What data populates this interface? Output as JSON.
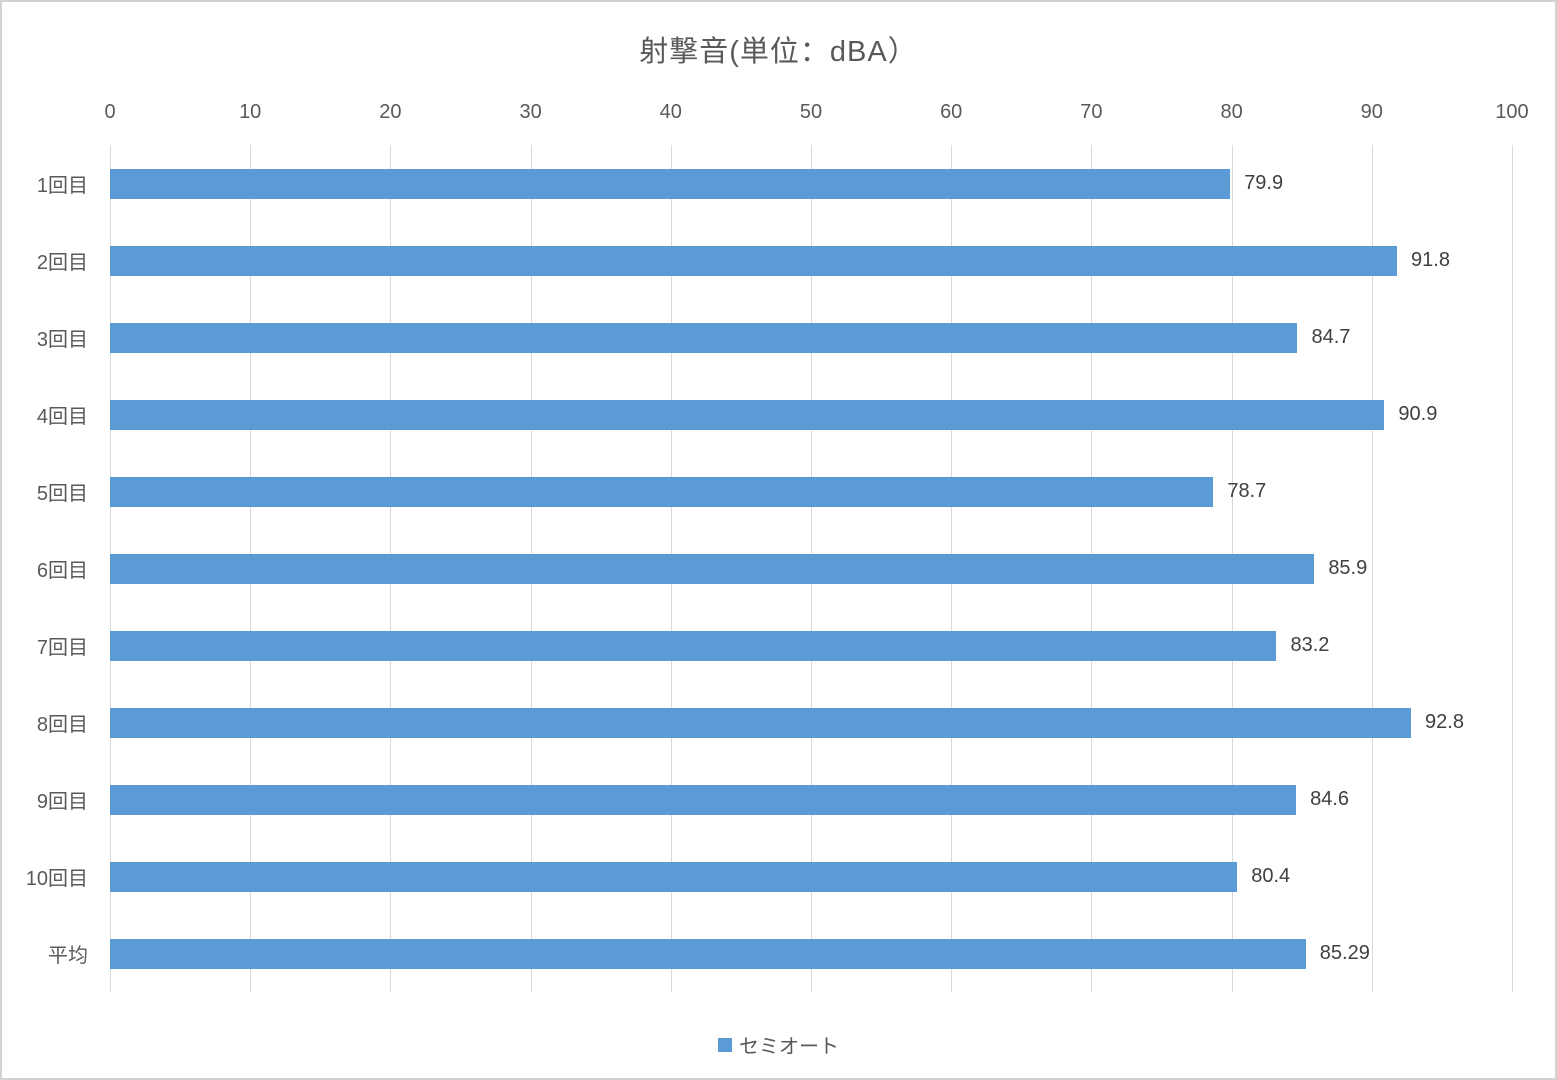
{
  "title": "射撃音(単位：dBA）",
  "legend": {
    "label": "セミオート",
    "marker_color": "#5b9bd5",
    "position": "bottom"
  },
  "colors": {
    "bar": "#5b9bd5",
    "gridline": "#d9d9d9",
    "axis_line": "#d9d9d9",
    "title_text": "#595959",
    "tick_text": "#595959",
    "category_text": "#595959",
    "data_label_text": "#404040",
    "legend_text": "#595959",
    "border": "#d2d2d2"
  },
  "chart_data": {
    "type": "bar",
    "orientation": "horizontal",
    "title": "射撃音(単位：dBA）",
    "categories": [
      "1回目",
      "2回目",
      "3回目",
      "4回目",
      "5回目",
      "6回目",
      "7回目",
      "8回目",
      "9回目",
      "10回目",
      "平均"
    ],
    "series": [
      {
        "name": "セミオート",
        "values": [
          79.9,
          91.8,
          84.7,
          90.9,
          78.7,
          85.9,
          83.2,
          92.8,
          84.6,
          80.4,
          85.29
        ]
      }
    ],
    "data_labels": [
      "79.9",
      "91.8",
      "84.7",
      "90.9",
      "78.7",
      "85.9",
      "83.2",
      "92.8",
      "84.6",
      "80.4",
      "85.29"
    ],
    "xlabel": "",
    "ylabel": "",
    "xlim": [
      0,
      100
    ],
    "x_ticks": [
      0,
      10,
      20,
      30,
      40,
      50,
      60,
      70,
      80,
      90,
      100
    ],
    "grid": true,
    "legend_position": "bottom"
  }
}
